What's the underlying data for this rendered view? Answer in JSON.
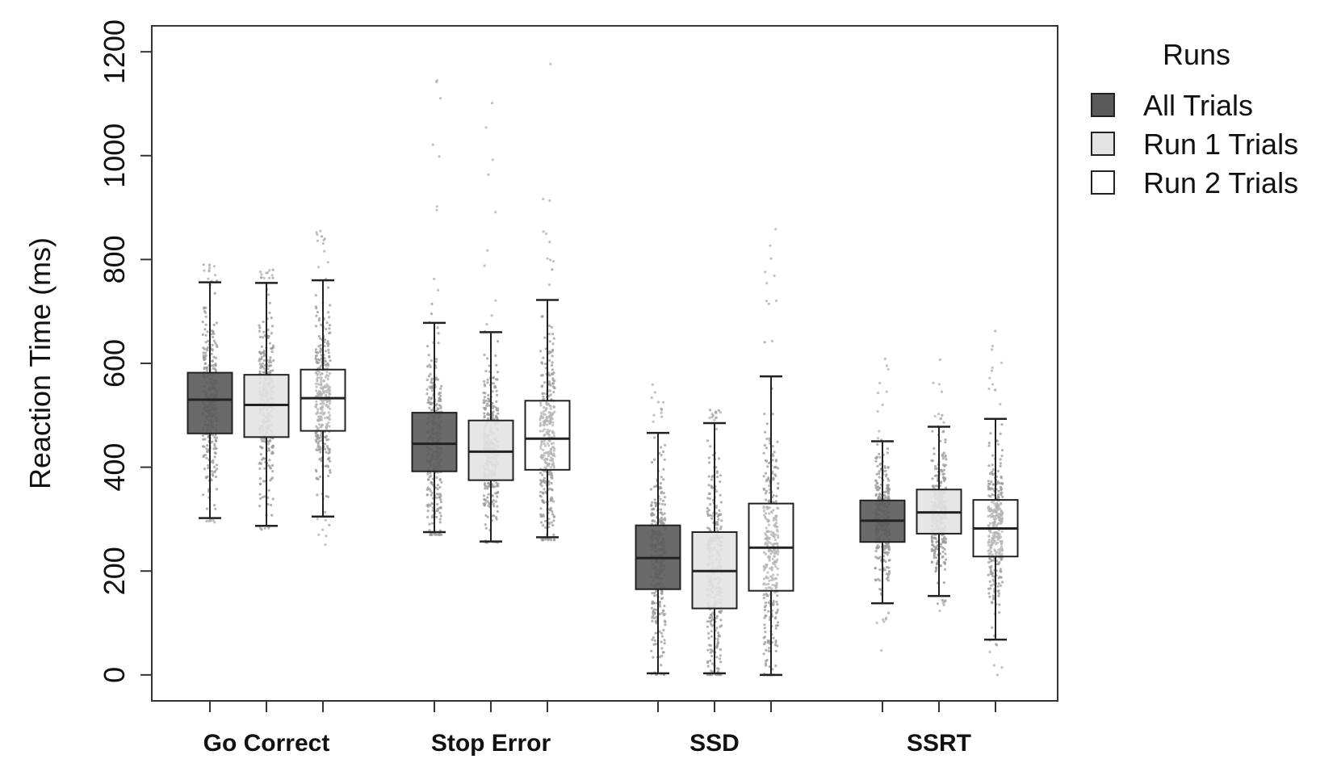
{
  "chart_data": {
    "type": "box",
    "title": "",
    "xlabel": "",
    "ylabel": "Reaction Time (ms)",
    "ylim": [
      -50,
      1250
    ],
    "yticks": [
      0,
      200,
      400,
      600,
      800,
      1000,
      1200
    ],
    "grid": false,
    "legend_position": "right",
    "legend_title": "Runs",
    "categories": [
      "Go Correct",
      "Stop Error",
      "SSD",
      "SSRT"
    ],
    "series": [
      {
        "name": "All Trials",
        "fill": "#5a5a5a",
        "boxes": [
          {
            "whisker_low": 302,
            "q1": 465,
            "median": 530,
            "q3": 582,
            "whisker_high": 756,
            "points_max": 790,
            "points_min": 290
          },
          {
            "whisker_low": 275,
            "q1": 392,
            "median": 445,
            "q3": 505,
            "whisker_high": 678,
            "points_max": 1200,
            "points_min": 270
          },
          {
            "whisker_low": 3,
            "q1": 165,
            "median": 225,
            "q3": 288,
            "whisker_high": 466,
            "points_max": 580,
            "points_min": 0
          },
          {
            "whisker_low": 138,
            "q1": 256,
            "median": 297,
            "q3": 336,
            "whisker_high": 450,
            "points_max": 610,
            "points_min": 45
          }
        ]
      },
      {
        "name": "Run 1 Trials",
        "fill": "#e3e3e3",
        "boxes": [
          {
            "whisker_low": 287,
            "q1": 458,
            "median": 520,
            "q3": 578,
            "whisker_high": 755,
            "points_max": 780,
            "points_min": 280
          },
          {
            "whisker_low": 257,
            "q1": 375,
            "median": 430,
            "q3": 490,
            "whisker_high": 660,
            "points_max": 1180,
            "points_min": 255
          },
          {
            "whisker_low": 3,
            "q1": 128,
            "median": 200,
            "q3": 275,
            "whisker_high": 485,
            "points_max": 510,
            "points_min": 0
          },
          {
            "whisker_low": 152,
            "q1": 272,
            "median": 313,
            "q3": 357,
            "whisker_high": 478,
            "points_max": 610,
            "points_min": 120
          }
        ]
      },
      {
        "name": "Run 2 Trials",
        "fill": "#ffffff",
        "boxes": [
          {
            "whisker_low": 305,
            "q1": 470,
            "median": 533,
            "q3": 588,
            "whisker_high": 760,
            "points_max": 855,
            "points_min": 250
          },
          {
            "whisker_low": 265,
            "q1": 395,
            "median": 455,
            "q3": 528,
            "whisker_high": 722,
            "points_max": 1220,
            "points_min": 260
          },
          {
            "whisker_low": 0,
            "q1": 162,
            "median": 245,
            "q3": 330,
            "whisker_high": 575,
            "points_max": 865,
            "points_min": 0
          },
          {
            "whisker_low": 68,
            "q1": 228,
            "median": 282,
            "q3": 337,
            "whisker_high": 493,
            "points_max": 705,
            "points_min": 0
          }
        ]
      }
    ]
  },
  "colors": {
    "points": "#9a9a9a",
    "axis": "#333333",
    "box_stroke": "#222222"
  }
}
